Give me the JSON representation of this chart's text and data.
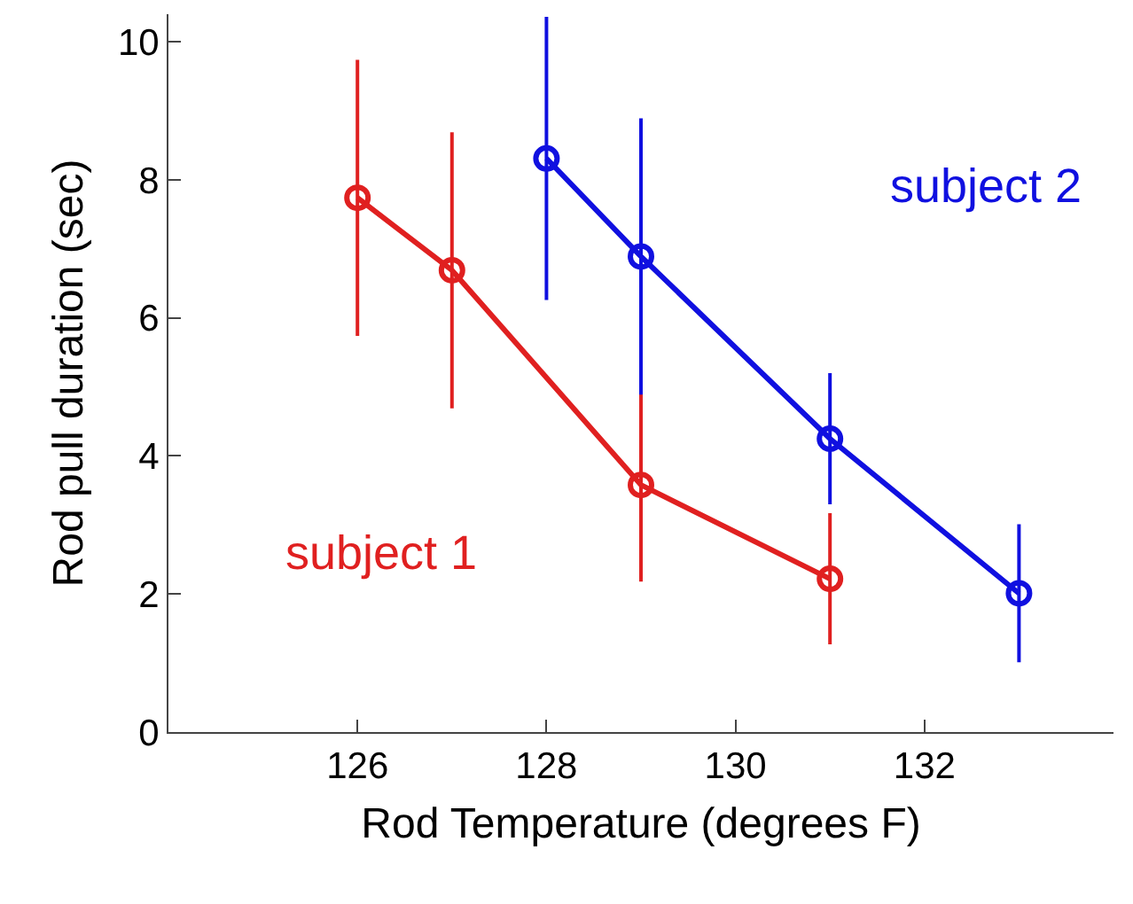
{
  "chart_data": {
    "type": "line",
    "xlabel": "Rod Temperature (degrees F)",
    "ylabel": "Rod pull duration (sec)",
    "xlim": [
      124,
      134
    ],
    "xticks": [
      126,
      128,
      130,
      132
    ],
    "ylim": [
      0,
      10.4
    ],
    "yticks": [
      0,
      2,
      4,
      6,
      8,
      10
    ],
    "grid": false,
    "legend": false,
    "marker": "circle",
    "line_style": "solid",
    "series": [
      {
        "name": "subject 1",
        "color": "#e02020",
        "x": [
          126,
          127,
          129,
          131
        ],
        "values": [
          7.74,
          6.69,
          3.58,
          2.22
        ],
        "errors": [
          2,
          2,
          1.4,
          0.95
        ]
      },
      {
        "name": "subject 2",
        "color": "#1010e0",
        "x": [
          128,
          129,
          131,
          133
        ],
        "values": [
          8.31,
          6.89,
          4.25,
          2.01
        ],
        "errors": [
          2.05,
          2,
          0.95,
          1
        ]
      }
    ]
  }
}
